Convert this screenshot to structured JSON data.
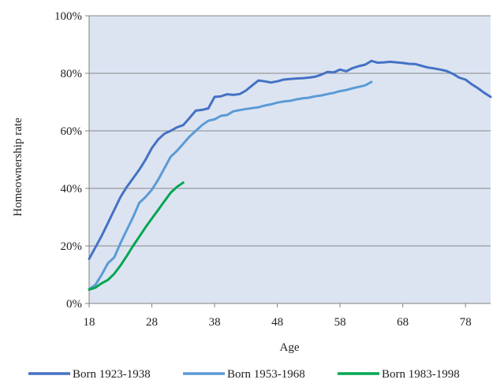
{
  "chart_data": {
    "type": "line",
    "title": "",
    "xlabel": "Age",
    "ylabel": "Homeownership rate",
    "xlim": [
      18,
      82
    ],
    "ylim": [
      0,
      100
    ],
    "x_ticks": [
      18,
      28,
      38,
      48,
      58,
      68,
      78
    ],
    "x_tick_labels": [
      "18",
      "28",
      "38",
      "48",
      "58",
      "68",
      "78"
    ],
    "y_ticks": [
      0,
      20,
      40,
      60,
      80,
      100
    ],
    "y_tick_labels": [
      "0%",
      "20%",
      "40%",
      "60%",
      "80%",
      "100%"
    ],
    "grid": "horizontal",
    "plot_background": "#DCE4F2",
    "legend_position": "bottom",
    "series": [
      {
        "name": "Born 1923-1938",
        "color": "#4472C4",
        "x": [
          18,
          19,
          20,
          21,
          22,
          23,
          24,
          25,
          26,
          27,
          28,
          29,
          30,
          31,
          32,
          33,
          34,
          35,
          36,
          37,
          38,
          39,
          40,
          41,
          42,
          43,
          44,
          45,
          46,
          47,
          48,
          49,
          50,
          51,
          52,
          53,
          54,
          55,
          56,
          57,
          58,
          59,
          60,
          61,
          62,
          63,
          64,
          65,
          66,
          67,
          68,
          69,
          70,
          71,
          72,
          73,
          74,
          75,
          76,
          77,
          78,
          79,
          80,
          81,
          82
        ],
        "values": [
          15.5,
          19.5,
          23.5,
          28,
          32.5,
          37,
          40.5,
          43.5,
          46.5,
          50,
          54,
          57,
          59,
          60,
          61.2,
          62,
          64.5,
          67,
          67.3,
          67.8,
          71.8,
          72,
          72.7,
          72.5,
          72.8,
          74,
          75.8,
          77.5,
          77.2,
          76.8,
          77.2,
          77.8,
          78,
          78.2,
          78.3,
          78.5,
          78.8,
          79.5,
          80.5,
          80.3,
          81.3,
          80.7,
          81.8,
          82.5,
          83,
          84.3,
          83.7,
          83.8,
          84,
          83.8,
          83.6,
          83.3,
          83.2,
          82.6,
          82,
          81.7,
          81.3,
          80.8,
          79.8,
          78.5,
          77.8,
          76.2,
          74.8,
          73.2,
          71.8
        ]
      },
      {
        "name": "Born 1953-1968",
        "color": "#5B9BD5",
        "x": [
          18,
          19,
          20,
          21,
          22,
          23,
          24,
          25,
          26,
          27,
          28,
          29,
          30,
          31,
          32,
          33,
          34,
          35,
          36,
          37,
          38,
          39,
          40,
          41,
          42,
          43,
          44,
          45,
          46,
          47,
          48,
          49,
          50,
          51,
          52,
          53,
          54,
          55,
          56,
          57,
          58,
          59,
          60,
          61,
          62,
          63
        ],
        "values": [
          5,
          6.5,
          10,
          14,
          16,
          21,
          25.5,
          30,
          35,
          37,
          39.5,
          43,
          47,
          51,
          53,
          55.5,
          58,
          60,
          62,
          63.5,
          64,
          65.2,
          65.5,
          66.8,
          67.2,
          67.6,
          67.9,
          68.2,
          68.8,
          69.2,
          69.8,
          70.2,
          70.4,
          70.9,
          71.3,
          71.5,
          72,
          72.3,
          72.8,
          73.2,
          73.8,
          74.2,
          74.8,
          75.3,
          75.8,
          77
        ]
      },
      {
        "name": "Born 1983-1998",
        "color": "#00A651",
        "x": [
          18,
          19,
          20,
          21,
          22,
          23,
          24,
          25,
          26,
          27,
          28,
          29,
          30,
          31,
          32,
          33
        ],
        "values": [
          4.8,
          5.5,
          7,
          8.2,
          10.3,
          13.2,
          16.5,
          20,
          23.2,
          26.5,
          29.5,
          32.5,
          35.5,
          38.5,
          40.5,
          42
        ]
      }
    ]
  }
}
